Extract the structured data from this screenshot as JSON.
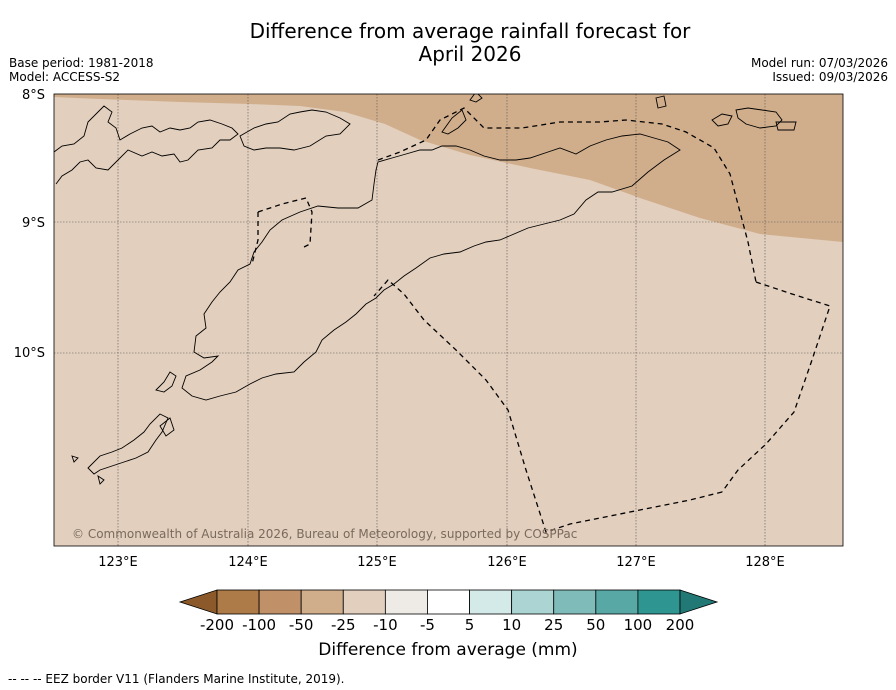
{
  "title": {
    "line1": "Difference from average rainfall forecast for",
    "line2": "April 2026"
  },
  "meta": {
    "base_period": "Base period: 1981-2018",
    "model": "Model: ACCESS-S2",
    "model_run": "Model run: 07/03/2026",
    "issued": "Issued: 09/03/2026"
  },
  "map": {
    "lat_labels": [
      "8°S",
      "9°S",
      "10°S"
    ],
    "lon_labels": [
      "123°E",
      "124°E",
      "125°E",
      "126°E",
      "127°E",
      "128°E"
    ],
    "copyright": "© Commonwealth of Australia 2026, Bureau of Meteorology, supported by COSPPac",
    "colors": {
      "land_outline": "#000000",
      "category_minus_10_to_minus_25": "#e2cfbd",
      "category_minus_25_to_minus_50": "#d0ae8c",
      "gridline": "#555555"
    }
  },
  "colorbar": {
    "ticks": [
      "-200",
      "-100",
      "-50",
      "-25",
      "-10",
      "-5",
      "5",
      "10",
      "25",
      "50",
      "100",
      "200"
    ],
    "colors": [
      "#8c5a2a",
      "#ad7b47",
      "#c09068",
      "#d0ae8c",
      "#e2cfbd",
      "#eeebe6",
      "#ffffff",
      "#d4eae8",
      "#abd4d2",
      "#7fbcb9",
      "#58a8a6",
      "#2e9591",
      "#227874"
    ],
    "label": "Difference from average (mm)"
  },
  "footer": {
    "eez_note": "--  --  -- EEZ border V11 (Flanders Marine Institute, 2019)."
  }
}
